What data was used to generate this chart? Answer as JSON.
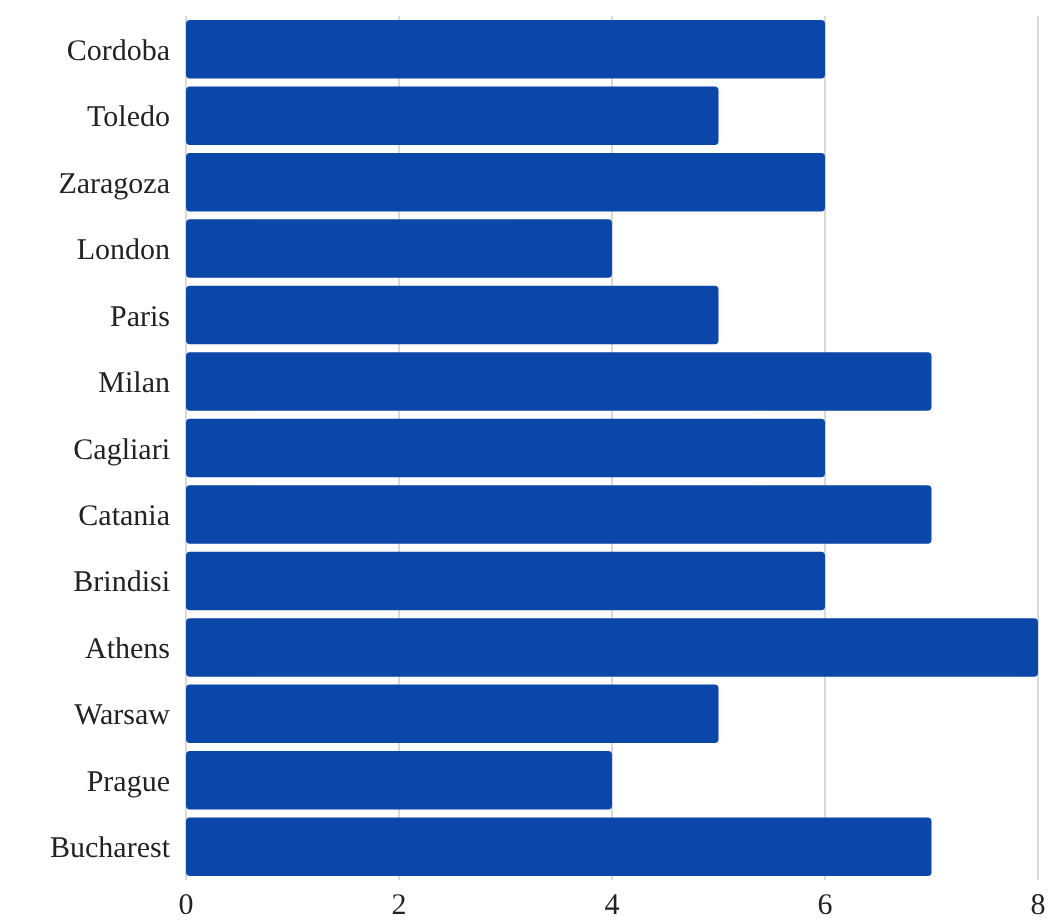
{
  "chart_data": {
    "type": "bar",
    "orientation": "horizontal",
    "categories": [
      "Cordoba",
      "Toledo",
      "Zaragoza",
      "London",
      "Paris",
      "Milan",
      "Cagliari",
      "Catania",
      "Brindisi",
      "Athens",
      "Warsaw",
      "Prague",
      "Bucharest"
    ],
    "values": [
      6,
      5,
      6,
      4,
      5,
      7,
      6,
      7,
      6,
      8,
      5,
      4,
      7
    ],
    "color": "#0a47a9",
    "xlim": [
      0,
      8
    ],
    "xticks": [
      0,
      2,
      4,
      6,
      8
    ],
    "grid": "x"
  }
}
